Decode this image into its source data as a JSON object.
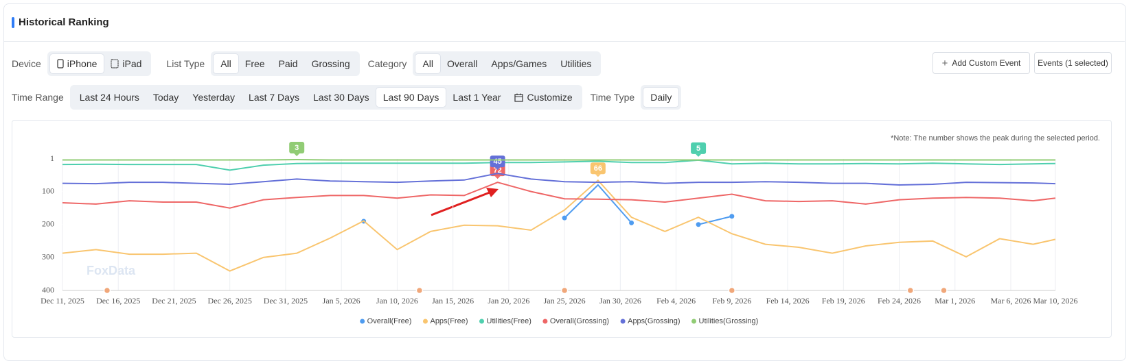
{
  "header": {
    "title": "Historical Ranking"
  },
  "filters": {
    "device": {
      "label": "Device",
      "options": [
        "iPhone",
        "iPad"
      ],
      "selected": 0
    },
    "list_type": {
      "label": "List Type",
      "options": [
        "All",
        "Free",
        "Paid",
        "Grossing"
      ],
      "selected": 0
    },
    "category": {
      "label": "Category",
      "options": [
        "All",
        "Overall",
        "Apps/Games",
        "Utilities"
      ],
      "selected": 0
    },
    "time_range": {
      "label": "Time Range",
      "options": [
        "Last 24 Hours",
        "Today",
        "Yesterday",
        "Last 7 Days",
        "Last 30 Days",
        "Last 90 Days",
        "Last 1 Year",
        "Customize"
      ],
      "selected": 5
    },
    "time_type": {
      "label": "Time Type",
      "options": [
        "Daily"
      ],
      "selected": 0
    }
  },
  "buttons": {
    "add_event": "Add Custom Event",
    "events": "Events (1 selected)"
  },
  "chart_data": {
    "type": "line",
    "note": "*Note: The number shows the peak during the selected period.",
    "watermark": "FoxData",
    "x": [
      "2025-12-11",
      "2025-12-14",
      "2025-12-17",
      "2025-12-20",
      "2025-12-23",
      "2025-12-26",
      "2025-12-29",
      "2026-01-01",
      "2026-01-04",
      "2026-01-07",
      "2026-01-10",
      "2026-01-13",
      "2026-01-16",
      "2026-01-19",
      "2026-01-22",
      "2026-01-25",
      "2026-01-28",
      "2026-01-31",
      "2026-02-03",
      "2026-02-06",
      "2026-02-09",
      "2026-02-12",
      "2026-02-15",
      "2026-02-18",
      "2026-02-21",
      "2026-02-24",
      "2026-02-27",
      "2026-03-02",
      "2026-03-05",
      "2026-03-08",
      "2026-03-10"
    ],
    "series": [
      {
        "name": "Overall(Free)",
        "color": "#4f9cf0",
        "show_peak": false,
        "values": [
          null,
          null,
          null,
          null,
          null,
          null,
          null,
          null,
          null,
          190,
          null,
          null,
          null,
          null,
          null,
          180,
          80,
          195,
          null,
          200,
          175,
          null,
          null,
          null,
          null,
          null,
          null,
          null,
          null,
          null,
          null
        ]
      },
      {
        "name": "Apps(Free)",
        "color": "#f9c56f",
        "show_peak": true,
        "values": [
          287,
          276,
          290,
          290,
          287,
          341,
          300,
          287,
          241,
          189,
          276,
          221,
          202,
          204,
          217,
          156,
          66,
          178,
          221,
          178,
          228,
          260,
          269,
          287,
          265,
          254,
          250,
          298,
          243,
          260,
          245
        ]
      },
      {
        "name": "Utilities(Free)",
        "color": "#4fcfae",
        "show_peak": true,
        "values": [
          18,
          17,
          18,
          18,
          18,
          35,
          20,
          15,
          14,
          14,
          14,
          14,
          14,
          12,
          12,
          10,
          8,
          12,
          12,
          5,
          16,
          14,
          16,
          16,
          15,
          16,
          14,
          16,
          18,
          16,
          15
        ]
      },
      {
        "name": "Overall(Grossing)",
        "color": "#ee6666",
        "show_peak": true,
        "values": [
          134,
          138,
          128,
          132,
          132,
          150,
          125,
          118,
          112,
          112,
          120,
          110,
          112,
          72,
          100,
          122,
          123,
          125,
          132,
          120,
          108,
          128,
          130,
          128,
          138,
          125,
          120,
          118,
          120,
          128,
          120
        ]
      },
      {
        "name": "Apps(Grossing)",
        "color": "#6470d8",
        "show_peak": true,
        "values": [
          75,
          76,
          72,
          72,
          75,
          78,
          70,
          62,
          68,
          70,
          72,
          68,
          65,
          45,
          62,
          70,
          72,
          70,
          75,
          72,
          72,
          70,
          72,
          75,
          75,
          80,
          78,
          72,
          73,
          74,
          76
        ]
      },
      {
        "name": "Utilities(Grossing)",
        "color": "#91cc75",
        "show_peak": true,
        "values": [
          4,
          4,
          4,
          4,
          4,
          4,
          4,
          3,
          4,
          4,
          4,
          4,
          4,
          4,
          4,
          4,
          4,
          4,
          4,
          4,
          4,
          4,
          4,
          4,
          4,
          4,
          4,
          4,
          4,
          4,
          4
        ]
      }
    ],
    "xlim": [
      "2025-12-11",
      "2026-03-10"
    ],
    "xticks": [
      {
        "value": "2025-12-11",
        "label": "Dec 11, 2025"
      },
      {
        "value": "2025-12-16",
        "label": "Dec 16, 2025"
      },
      {
        "value": "2025-12-21",
        "label": "Dec 21, 2025"
      },
      {
        "value": "2025-12-26",
        "label": "Dec 26, 2025"
      },
      {
        "value": "2025-12-31",
        "label": "Dec 31, 2025"
      },
      {
        "value": "2026-01-05",
        "label": "Jan 5, 2026"
      },
      {
        "value": "2026-01-10",
        "label": "Jan 10, 2026"
      },
      {
        "value": "2026-01-15",
        "label": "Jan 15, 2026"
      },
      {
        "value": "2026-01-20",
        "label": "Jan 20, 2026"
      },
      {
        "value": "2026-01-25",
        "label": "Jan 25, 2026"
      },
      {
        "value": "2026-01-30",
        "label": "Jan 30, 2026"
      },
      {
        "value": "2026-02-04",
        "label": "Feb 4, 2026"
      },
      {
        "value": "2026-02-09",
        "label": "Feb 9, 2026"
      },
      {
        "value": "2026-02-14",
        "label": "Feb 14, 2026"
      },
      {
        "value": "2026-02-19",
        "label": "Feb 19, 2026"
      },
      {
        "value": "2026-02-24",
        "label": "Feb 24, 2026"
      },
      {
        "value": "2026-03-01",
        "label": "Mar 1, 2026"
      },
      {
        "value": "2026-03-06",
        "label": "Mar 6, 2026"
      },
      {
        "value": "2026-03-10",
        "label": "Mar 10, 2026"
      }
    ],
    "ylim": [
      1,
      400
    ],
    "y_inverted": true,
    "yticks": [
      1,
      100,
      200,
      300,
      400
    ],
    "grid": "x",
    "legend": "bottom",
    "events": [
      "2025-12-15",
      "2026-01-12",
      "2026-01-25",
      "2026-02-09",
      "2026-02-25",
      "2026-02-28"
    ],
    "event_color": "#f0a77a"
  }
}
